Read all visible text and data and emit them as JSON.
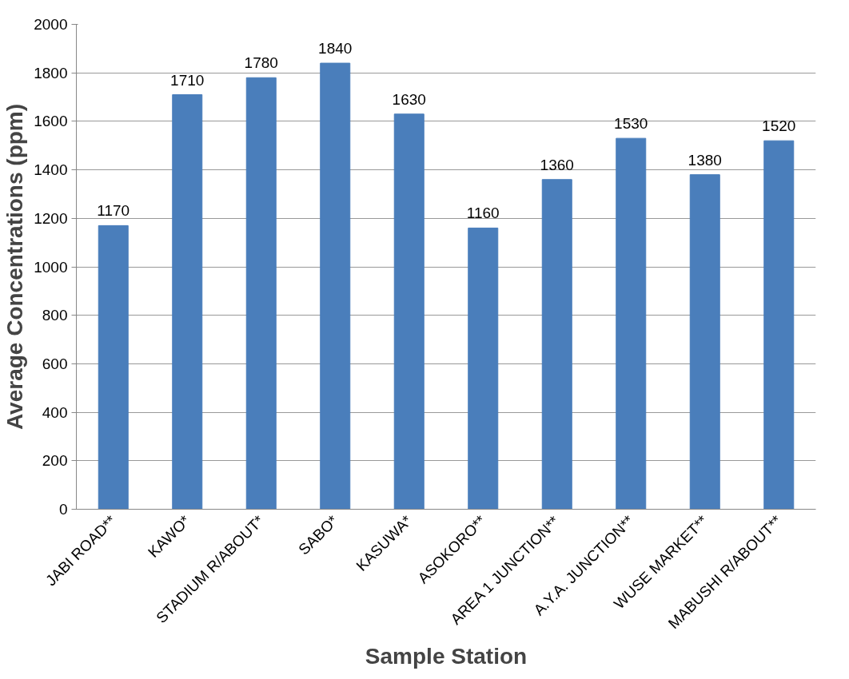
{
  "chart_data": {
    "type": "bar",
    "xlabel": "Sample Station",
    "ylabel": "Average Concentrations (ppm)",
    "categories": [
      "JABI ROAD**",
      "KAWO*",
      "STADIUM R/ABOUT*",
      "SABO*",
      "KASUWA*",
      "ASOKORO**",
      "AREA 1 JUNCTION**",
      "A.Y.A. JUNCTION**",
      "WUSE MARKET**",
      "MABUSHI R/ABOUT**"
    ],
    "values": [
      1170,
      1710,
      1780,
      1840,
      1630,
      1160,
      1360,
      1530,
      1380,
      1520
    ],
    "color": "#4a7ebb",
    "ylim": [
      0,
      2000
    ],
    "yticks": [
      0,
      200,
      400,
      600,
      800,
      1000,
      1200,
      1400,
      1600,
      1800,
      2000
    ],
    "grid": "y",
    "data_labels": true
  }
}
